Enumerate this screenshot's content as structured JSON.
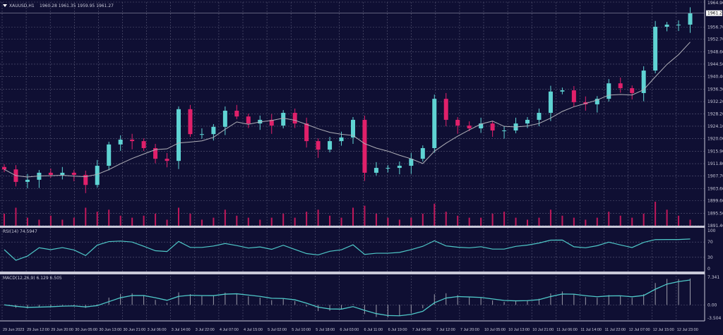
{
  "header": {
    "symbol_label": "XAUUSD,H1",
    "ohlc": "1960.28 1961.35 1959.95 1961.27",
    "menu_icon": "triangle-down-icon"
  },
  "colors": {
    "background": "#0f0f33",
    "up": "#5fd3d3",
    "down": "#e0206a",
    "ma": "#b0b0b8",
    "indicator": "#4fc8c8",
    "volume": "#c0185a"
  },
  "chart_data": [
    {
      "type": "candlestick",
      "title": "XAUUSD,H1",
      "ylim": [
        1891.4,
        1964.9
      ],
      "y_ticks": [
        "1964.90",
        "1956.70",
        "1952.70",
        "1948.60",
        "1944.50",
        "1940.40",
        "1936.30",
        "1932.20",
        "1928.20",
        "1924.10",
        "1920.00",
        "1915.90",
        "1911.80",
        "1907.70",
        "1903.60",
        "1899.60",
        "1895.50",
        "1891.40"
      ],
      "current_price": "1961.27",
      "x_ticks": [
        "29 Jun 2023",
        "29 Jun 12:00",
        "29 Jun 20:00",
        "30 Jun 05:00",
        "30 Jun 13:00",
        "30 Jun 21:00",
        "3 Jul 06:00",
        "3 Jul 14:00",
        "3 Jul 22:00",
        "4 Jul 07:00",
        "4 Jul 15:00",
        "5 Jul 02:00",
        "5 Jul 10:00",
        "5 Jul 18:00",
        "6 Jul 03:00",
        "6 Jul 11:00",
        "6 Jul 19:00",
        "7 Jul 04:00",
        "7 Jul 12:00",
        "7 Jul 20:00",
        "10 Jul 05:00",
        "10 Jul 13:00",
        "10 Jul 21:00",
        "11 Jul 06:00",
        "11 Jul 14:00",
        "11 Jul 22:00",
        "12 Jul 07:00",
        "12 Jul 15:00",
        "12 Jul 23:00"
      ],
      "close": [
        1909.9,
        1905.8,
        1906.5,
        1908.8,
        1908.1,
        1908.8,
        1908.1,
        1904.8,
        1911.1,
        1918.1,
        1919.7,
        1919.2,
        1916.9,
        1913.4,
        1912.7,
        1929.7,
        1921.5,
        1921.5,
        1923.9,
        1929.2,
        1927.3,
        1925.0,
        1926.2,
        1924.3,
        1928.5,
        1925.0,
        1919.2,
        1916.4,
        1919.2,
        1920.4,
        1926.2,
        1908.8,
        1910.4,
        1910.4,
        1911.1,
        1913.4,
        1916.9,
        1933.1,
        1926.2,
        1924.3,
        1923.4,
        1925.0,
        1922.7,
        1922.7,
        1925.0,
        1926.2,
        1928.5,
        1935.5,
        1935.9,
        1932.0,
        1931.3,
        1933.1,
        1938.2,
        1936.6,
        1935.0,
        1942.4,
        1956.8,
        1957.5,
        1957.5,
        1961.3
      ],
      "volume": [
        6,
        9,
        4,
        3,
        5,
        3,
        4,
        9,
        7,
        8,
        5,
        4,
        5,
        6,
        3,
        9,
        6,
        3,
        4,
        8,
        5,
        4,
        3,
        4,
        6,
        4,
        7,
        8,
        5,
        4,
        9,
        10,
        6,
        4,
        3,
        4,
        6,
        11,
        7,
        5,
        4,
        4,
        6,
        7,
        4,
        3,
        4,
        8,
        5,
        4,
        3,
        4,
        7,
        5,
        4,
        6,
        12,
        8,
        5,
        3
      ]
    },
    {
      "type": "line",
      "title": "RSI(14) 74.5947",
      "ylim": [
        0,
        100
      ],
      "y_ticks": [
        "100",
        "70",
        "30",
        "0"
      ]
    },
    {
      "type": "bar+line",
      "title": "MACD(12,26,9) 6.129 6.505",
      "ylim": [
        -3.504,
        7.341
      ],
      "y_ticks": [
        "7.341",
        "0.00",
        "-3.504"
      ]
    }
  ]
}
